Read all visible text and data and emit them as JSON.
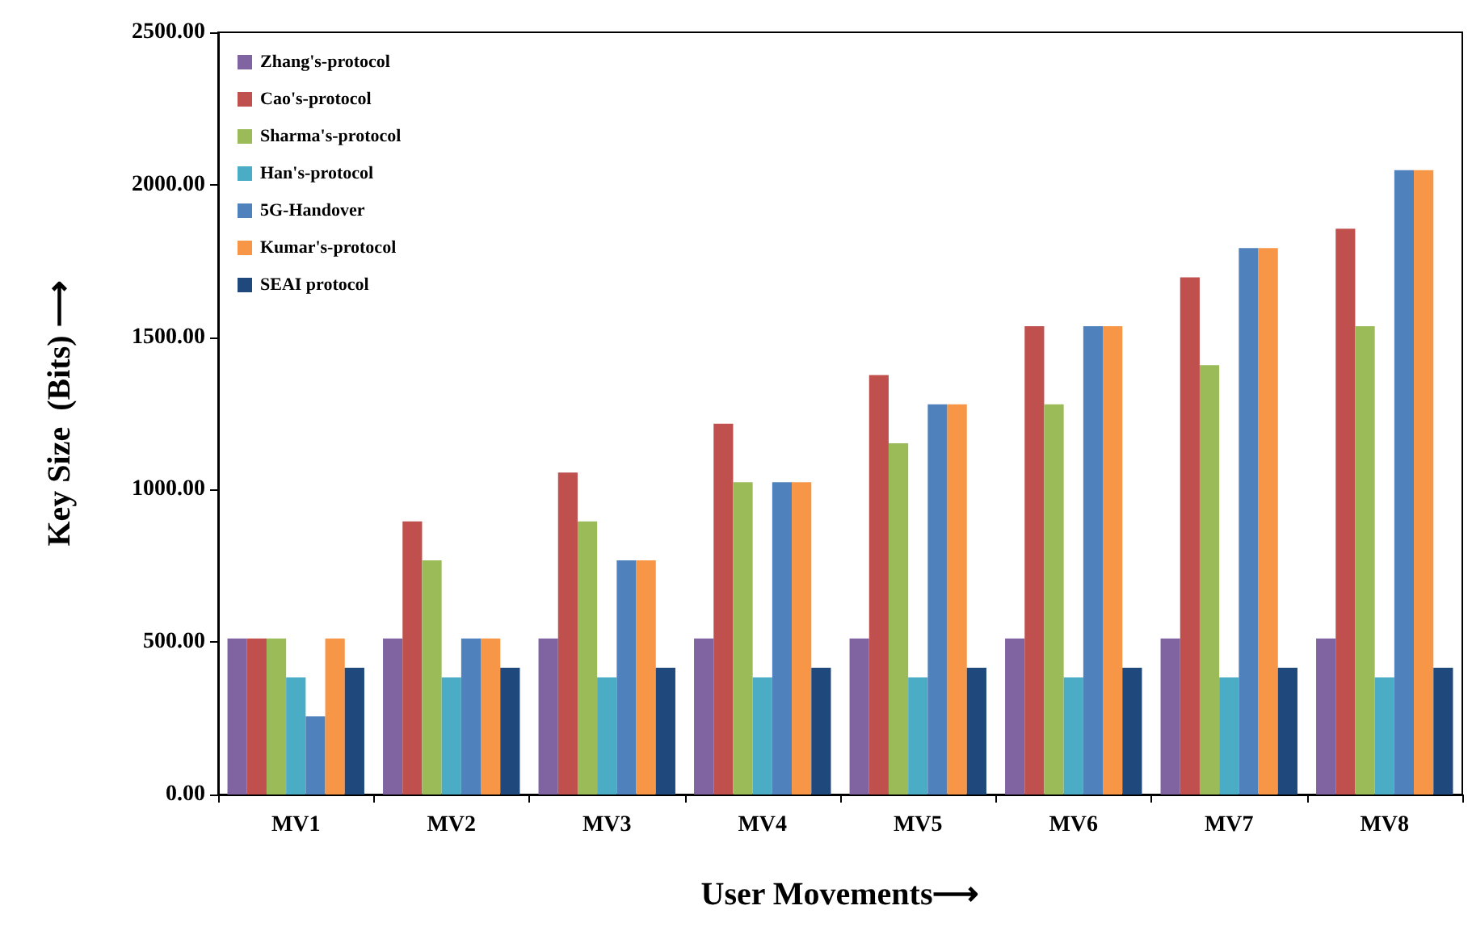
{
  "chart_data": {
    "type": "bar",
    "xlabel": "User Movements⟶",
    "ylabel": "Key Size  (Bits) ⟶",
    "categories": [
      "MV1",
      "MV2",
      "MV3",
      "MV4",
      "MV5",
      "MV6",
      "MV7",
      "MV8"
    ],
    "series": [
      {
        "name": "Zhang's-protocol",
        "color": "#8064a2",
        "values": [
          512,
          512,
          512,
          512,
          512,
          512,
          512,
          512
        ]
      },
      {
        "name": "Cao's-protocol",
        "color": "#c0504d",
        "values": [
          512,
          896,
          1056,
          1216,
          1376,
          1536,
          1696,
          1856
        ]
      },
      {
        "name": "Sharma's-protocol",
        "color": "#9bbb59",
        "values": [
          512,
          768,
          896,
          1024,
          1152,
          1280,
          1408,
          1536
        ]
      },
      {
        "name": "Han's-protocol",
        "color": "#4bacc6",
        "values": [
          384,
          384,
          384,
          384,
          384,
          384,
          384,
          384
        ]
      },
      {
        "name": "5G-Handover",
        "color": "#4f81bd",
        "values": [
          256,
          512,
          768,
          1024,
          1280,
          1536,
          1792,
          2048
        ]
      },
      {
        "name": "Kumar's-protocol",
        "color": "#f79646",
        "values": [
          512,
          512,
          768,
          1024,
          1280,
          1536,
          1792,
          2048
        ]
      },
      {
        "name": "SEAI protocol",
        "color": "#1f497d",
        "values": [
          416,
          416,
          416,
          416,
          416,
          416,
          416,
          416
        ]
      }
    ],
    "ylim": [
      0,
      2500
    ],
    "yticks": [
      {
        "value": 0,
        "label": "0.00"
      },
      {
        "value": 500,
        "label": "500.00"
      },
      {
        "value": 1000,
        "label": "1000.00"
      },
      {
        "value": 1500,
        "label": "1500.00"
      },
      {
        "value": 2000,
        "label": "2000.00"
      },
      {
        "value": 2500,
        "label": "2500.00"
      }
    ],
    "grid": false,
    "legend": "top left"
  }
}
